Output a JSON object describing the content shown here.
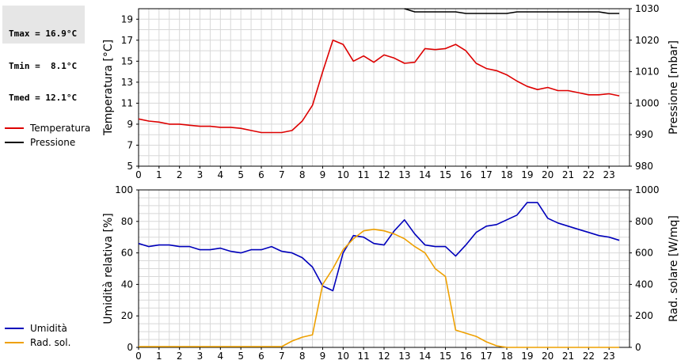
{
  "stats": {
    "tmax": "Tmax = 16.9°C",
    "tmin": "Tmin =  8.1°C",
    "tmed": "Tmed = 12.1°C"
  },
  "chart_data": [
    {
      "type": "line",
      "x_ticks": [
        "0",
        "1",
        "2",
        "3",
        "4",
        "5",
        "6",
        "7",
        "8",
        "9",
        "10",
        "11",
        "12",
        "13",
        "14",
        "15",
        "16",
        "17",
        "18",
        "19",
        "20",
        "21",
        "22",
        "23"
      ],
      "xlim": [
        0,
        24
      ],
      "left_axis": {
        "label": "Temperatura [°C]",
        "ylim": [
          5,
          20
        ],
        "ticks": [
          "5",
          "7",
          "9",
          "11",
          "13",
          "15",
          "17",
          "19"
        ]
      },
      "right_axis": {
        "label": "Pressione [mbar]",
        "ylim": [
          980,
          1030
        ],
        "ticks": [
          "980",
          "990",
          "1000",
          "1010",
          "1020",
          "1030"
        ]
      },
      "grid": true,
      "legend_position": "left",
      "series": [
        {
          "name": "Temperatura",
          "axis": "left",
          "color": "#dd0000",
          "x": [
            0,
            0.5,
            1,
            1.5,
            2,
            2.5,
            3,
            3.5,
            4,
            4.5,
            5,
            5.5,
            6,
            6.5,
            7,
            7.5,
            8,
            8.5,
            9,
            9.5,
            10,
            10.5,
            11,
            11.5,
            12,
            12.5,
            13,
            13.5,
            14,
            14.5,
            15,
            15.5,
            16,
            16.5,
            17,
            17.5,
            18,
            18.5,
            19,
            19.5,
            20,
            20.5,
            21,
            21.5,
            22,
            22.5,
            23,
            23.5
          ],
          "values": [
            9.5,
            9.3,
            9.2,
            9.0,
            9.0,
            8.9,
            8.8,
            8.8,
            8.7,
            8.7,
            8.6,
            8.4,
            8.2,
            8.2,
            8.2,
            8.4,
            9.3,
            10.8,
            14.0,
            17.0,
            16.6,
            15.0,
            15.5,
            14.9,
            15.6,
            15.3,
            14.8,
            14.9,
            16.2,
            16.1,
            16.2,
            16.6,
            16.0,
            14.8,
            14.3,
            14.1,
            13.7,
            13.1,
            12.6,
            12.3,
            12.5,
            12.2,
            12.2,
            12.0,
            11.8,
            11.8,
            11.9,
            11.7
          ]
        },
        {
          "name": "Pressione",
          "axis": "right",
          "color": "#000000",
          "x": [
            13,
            13.5,
            14,
            14.5,
            15,
            15.5,
            16,
            16.5,
            17,
            17.5,
            18,
            18.5,
            19,
            19.5,
            20,
            20.5,
            21,
            21.5,
            22,
            22.5,
            23,
            23.5
          ],
          "values": [
            1030,
            1029,
            1029,
            1029,
            1029,
            1029,
            1028.5,
            1028.5,
            1028.5,
            1028.5,
            1028.5,
            1029,
            1029,
            1029,
            1029,
            1029,
            1029,
            1029,
            1029,
            1029,
            1028.5,
            1028.5
          ]
        }
      ]
    },
    {
      "type": "line",
      "x_ticks": [
        "0",
        "1",
        "2",
        "3",
        "4",
        "5",
        "6",
        "7",
        "8",
        "9",
        "10",
        "11",
        "12",
        "13",
        "14",
        "15",
        "16",
        "17",
        "18",
        "19",
        "20",
        "21",
        "22",
        "23"
      ],
      "xlim": [
        0,
        24
      ],
      "left_axis": {
        "label": "Umidità relativa [%]",
        "ylim": [
          0,
          100
        ],
        "ticks": [
          "0",
          "20",
          "40",
          "60",
          "80",
          "100"
        ]
      },
      "right_axis": {
        "label": "Rad. solare [W/mq]",
        "ylim": [
          0,
          1000
        ],
        "ticks": [
          "0",
          "200",
          "400",
          "600",
          "800",
          "1000"
        ]
      },
      "grid": true,
      "legend_position": "left",
      "series": [
        {
          "name": "Umidità",
          "axis": "left",
          "color": "#0000bb",
          "x": [
            0,
            0.5,
            1,
            1.5,
            2,
            2.5,
            3,
            3.5,
            4,
            4.5,
            5,
            5.5,
            6,
            6.5,
            7,
            7.5,
            8,
            8.5,
            9,
            9.5,
            10,
            10.5,
            11,
            11.5,
            12,
            12.5,
            13,
            13.5,
            14,
            14.5,
            15,
            15.5,
            16,
            16.5,
            17,
            17.5,
            18,
            18.5,
            19,
            19.5,
            20,
            20.5,
            21,
            21.5,
            22,
            22.5,
            23,
            23.5
          ],
          "values": [
            66,
            64,
            65,
            65,
            64,
            64,
            62,
            62,
            63,
            61,
            60,
            62,
            62,
            64,
            61,
            60,
            57,
            51,
            39,
            36,
            60,
            71,
            70,
            66,
            65,
            74,
            81,
            72,
            65,
            64,
            64,
            58,
            65,
            73,
            77,
            78,
            81,
            84,
            92,
            92,
            82,
            79,
            77,
            75,
            73,
            71,
            70,
            68
          ]
        },
        {
          "name": "Rad. sol.",
          "axis": "right",
          "color": "#eea000",
          "x": [
            0,
            0.5,
            1,
            1.5,
            2,
            2.5,
            3,
            3.5,
            4,
            4.5,
            5,
            5.5,
            6,
            6.5,
            7,
            7.5,
            8,
            8.5,
            9,
            9.5,
            10,
            10.5,
            11,
            11.5,
            12,
            12.5,
            13,
            13.5,
            14,
            14.5,
            15,
            15.5,
            16,
            16.5,
            17,
            17.5,
            18,
            18.5,
            19,
            19.5,
            20,
            20.5,
            21,
            21.5,
            22,
            22.5,
            23,
            23.5
          ],
          "values": [
            5,
            5,
            5,
            5,
            5,
            5,
            5,
            5,
            5,
            5,
            5,
            5,
            5,
            5,
            5,
            40,
            65,
            80,
            400,
            500,
            620,
            690,
            740,
            750,
            740,
            720,
            690,
            640,
            600,
            500,
            450,
            110,
            90,
            70,
            35,
            10,
            0,
            0,
            0,
            0,
            0,
            0,
            0,
            0,
            0,
            0,
            0,
            0
          ]
        }
      ]
    }
  ]
}
